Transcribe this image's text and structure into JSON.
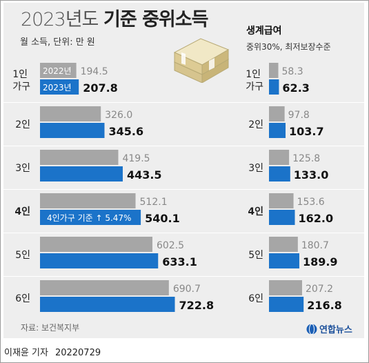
{
  "title_light": "2023년도",
  "title_bold": "기준 중위소득",
  "subtitle": "월 소득, 단위: 만 원",
  "right_title": "생계급여",
  "right_subtitle": "중위30%, 최저보장수준",
  "source": "자료: 보건복지부",
  "logo_text": "연합뉴스",
  "credit": {
    "author": "이재윤 기자",
    "date": "20220729"
  },
  "colors": {
    "gray": "#a6a6a6",
    "blue": "#1b73c9",
    "background": "#eeeeee",
    "bold_text": "#111111",
    "value_2022": "#888888"
  },
  "chart_data": [
    {
      "type": "bar",
      "title": "2023년도 기준 중위소득",
      "subtitle": "월 소득, 단위: 만 원",
      "categories": [
        "1인 가구",
        "2인",
        "3인",
        "4인",
        "5인",
        "6인"
      ],
      "series": [
        {
          "name": "2022년",
          "values": [
            194.5,
            326.0,
            419.5,
            512.1,
            602.5,
            690.7
          ]
        },
        {
          "name": "2023년",
          "values": [
            207.8,
            345.6,
            443.5,
            540.1,
            633.1,
            722.8
          ]
        }
      ],
      "annotation": "4인가구 기준 ↑ 5.47%",
      "orientation": "horizontal"
    },
    {
      "type": "bar",
      "title": "생계급여",
      "subtitle": "중위30%, 최저보장수준",
      "categories": [
        "1인 가구",
        "2인",
        "3인",
        "4인",
        "5인",
        "6인"
      ],
      "series": [
        {
          "name": "2022년",
          "values": [
            58.3,
            97.8,
            125.8,
            153.6,
            180.7,
            207.2
          ]
        },
        {
          "name": "2023년",
          "values": [
            62.3,
            103.7,
            133.0,
            162.0,
            189.9,
            216.8
          ]
        }
      ],
      "orientation": "horizontal"
    }
  ]
}
